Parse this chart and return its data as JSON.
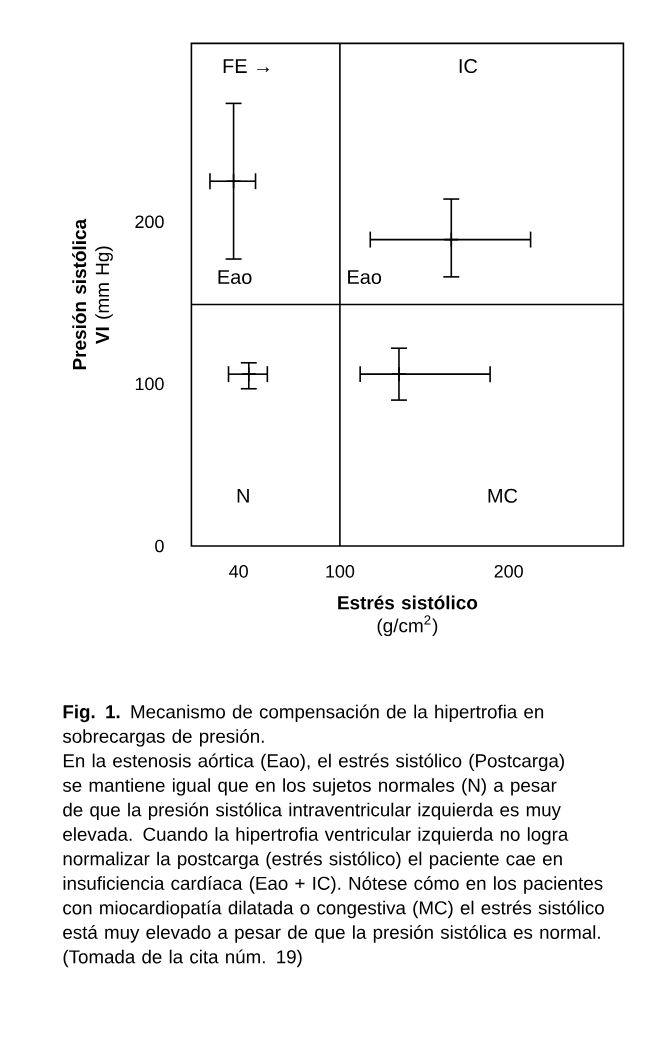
{
  "chart_data": {
    "type": "scatter",
    "xlabel": "**Estrés sistólico** (g/cm$^{2}$)",
    "ylabel": "**Presión sistólica VI** (mm Hg)",
    "x": [
      37,
      166,
      46,
      135
    ],
    "series": [
      {
        "color": "#000000",
        "values": [
          225,
          189,
          106,
          106
        ],
        "errors": [
          [
            177,
            273
          ],
          [
            166,
            214
          ],
          [
            97,
            113
          ],
          [
            90,
            122
          ]
        ],
        "xerrors": [
          [
            23,
            50
          ],
          [
            118,
            213
          ],
          [
            34,
            57
          ],
          [
            112,
            189
          ]
        ]
      }
    ],
    "xlim": [
      12,
      268
    ],
    "ylim": [
      0,
      310
    ],
    "xticks": [
      40,
      100,
      200
    ],
    "yticks": [
      0,
      100,
      200
    ],
    "grid": false,
    "ref_lines": [
      {
        "axis": "x",
        "value": 100,
        "color": "#000000"
      },
      {
        "axis": "y",
        "value": 149,
        "color": "#000000"
      }
    ],
    "annotations": [
      "FE →",
      "IC",
      "Eao",
      "Eao",
      "N",
      "MC",
      "**Fig. 1.** Mecanismo de compensación de la hipertrofia en sobrecargas de presión.",
      "En la estenosis aórtica (Eao), el estrés sistólico (Postcarga) se mantiene igual que en los sujetos normales (N) a pesar de que la presión sistólica intraventricular izquierda es muy elevada. Cuando la hipertrofia ventricular izquierda no logra normalizar la postcarga (estrés sistólico) el paciente cae en insuficiencia cardíaca (Eao + IC). Nótese cómo en los pacientes con miocardiopatía dilatada o congestiva (MC) el estrés sistólico está muy elevado a pesar de que la presión sistólica es normal. (Tomada de la cita núm. 19)"
    ]
  }
}
